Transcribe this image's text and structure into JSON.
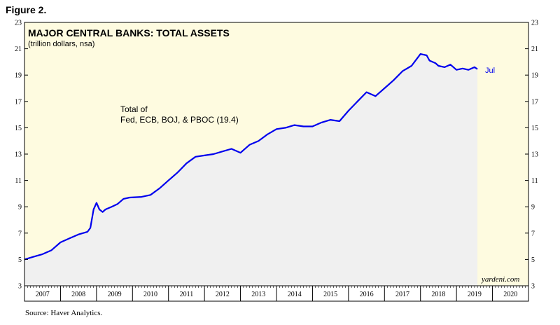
{
  "figure_label": "Figure 2.",
  "source": "Source: Haver Analytics.",
  "brand": "yardeni.com",
  "colors": {
    "background": "#fefbe0",
    "line": "#0000ee",
    "fill": "#f0f0f0",
    "frame": "#000000"
  },
  "chart_data": {
    "type": "area",
    "title": "MAJOR CENTRAL BANKS: TOTAL ASSETS",
    "subtitle": "(trillion dollars, nsa)",
    "annotation_lines": [
      "Total of",
      "Fed, ECB, BOJ, & PBOC (19.4)"
    ],
    "end_label": "Jul",
    "xlim": [
      2007,
      2021
    ],
    "ylim": [
      3,
      23
    ],
    "y_ticks": [
      3,
      5,
      7,
      9,
      11,
      13,
      15,
      17,
      19,
      21,
      23
    ],
    "x_tick_labels": [
      "2007",
      "2008",
      "2009",
      "2010",
      "2011",
      "2012",
      "2013",
      "2014",
      "2015",
      "2016",
      "2017",
      "2018",
      "2019",
      "2020"
    ],
    "grid": false,
    "series": [
      {
        "x": [
          2007.0,
          2007.25,
          2007.5,
          2007.75,
          2008.0,
          2008.25,
          2008.5,
          2008.75,
          2008.83,
          2008.92,
          2009.0,
          2009.08,
          2009.17,
          2009.25,
          2009.42,
          2009.58,
          2009.75,
          2009.92,
          2010.25,
          2010.5,
          2010.75,
          2011.0,
          2011.25,
          2011.5,
          2011.75,
          2012.0,
          2012.25,
          2012.5,
          2012.75,
          2013.0,
          2013.25,
          2013.5,
          2013.75,
          2014.0,
          2014.25,
          2014.5,
          2014.75,
          2015.0,
          2015.25,
          2015.5,
          2015.75,
          2016.0,
          2016.25,
          2016.5,
          2016.75,
          2017.0,
          2017.25,
          2017.5,
          2017.75,
          2018.0,
          2018.17,
          2018.25,
          2018.42,
          2018.5,
          2018.67,
          2018.83,
          2019.0,
          2019.17,
          2019.33,
          2019.5,
          2019.58
        ],
        "y": [
          5.0,
          5.2,
          5.4,
          5.7,
          6.3,
          6.6,
          6.9,
          7.1,
          7.4,
          8.8,
          9.3,
          8.8,
          8.6,
          8.8,
          9.0,
          9.2,
          9.6,
          9.7,
          9.75,
          9.9,
          10.4,
          11.0,
          11.6,
          12.3,
          12.8,
          12.9,
          13.0,
          13.2,
          13.4,
          13.1,
          13.7,
          14.0,
          14.5,
          14.9,
          15.0,
          15.2,
          15.1,
          15.1,
          15.4,
          15.6,
          15.5,
          16.3,
          17.0,
          17.7,
          17.4,
          18.0,
          18.6,
          19.3,
          19.7,
          20.6,
          20.5,
          20.1,
          19.9,
          19.7,
          19.6,
          19.8,
          19.4,
          19.5,
          19.4,
          19.6,
          19.45
        ]
      }
    ]
  }
}
